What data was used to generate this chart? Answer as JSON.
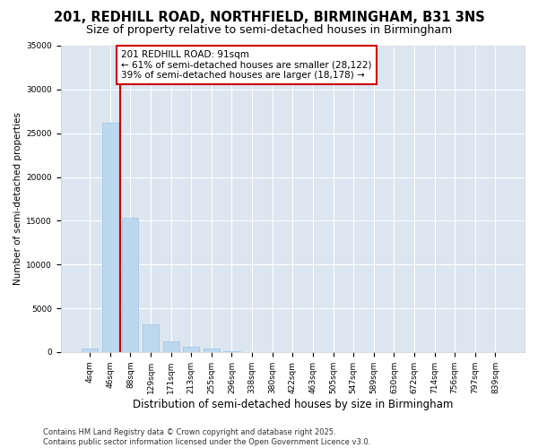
{
  "title1": "201, REDHILL ROAD, NORTHFIELD, BIRMINGHAM, B31 3NS",
  "title2": "Size of property relative to semi-detached houses in Birmingham",
  "xlabel": "Distribution of semi-detached houses by size in Birmingham",
  "ylabel": "Number of semi-detached properties",
  "categories": [
    "4sqm",
    "46sqm",
    "88sqm",
    "129sqm",
    "171sqm",
    "213sqm",
    "255sqm",
    "296sqm",
    "338sqm",
    "380sqm",
    "422sqm",
    "463sqm",
    "505sqm",
    "547sqm",
    "589sqm",
    "630sqm",
    "672sqm",
    "714sqm",
    "756sqm",
    "797sqm",
    "839sqm"
  ],
  "values": [
    400,
    26200,
    15300,
    3200,
    1200,
    550,
    350,
    120,
    0,
    0,
    0,
    0,
    0,
    0,
    0,
    0,
    0,
    0,
    0,
    0,
    0
  ],
  "bar_color": "#bdd7ee",
  "bar_edge_color": "#9dc3e6",
  "vline_color": "#cc0000",
  "annotation_text": "201 REDHILL ROAD: 91sqm\n← 61% of semi-detached houses are smaller (28,122)\n39% of semi-detached houses are larger (18,178) →",
  "annotation_box_facecolor": "#ffffff",
  "annotation_box_edgecolor": "#cc0000",
  "ylim": [
    0,
    35000
  ],
  "yticks": [
    0,
    5000,
    10000,
    15000,
    20000,
    25000,
    30000,
    35000
  ],
  "fig_bg_color": "#ffffff",
  "plot_bg_color": "#dce6f1",
  "grid_color": "#ffffff",
  "footnote": "Contains HM Land Registry data © Crown copyright and database right 2025.\nContains public sector information licensed under the Open Government Licence v3.0.",
  "title1_fontsize": 10.5,
  "title2_fontsize": 9,
  "xlabel_fontsize": 8.5,
  "ylabel_fontsize": 7.5,
  "tick_fontsize": 6.5,
  "annot_fontsize": 7.5,
  "footnote_fontsize": 6
}
